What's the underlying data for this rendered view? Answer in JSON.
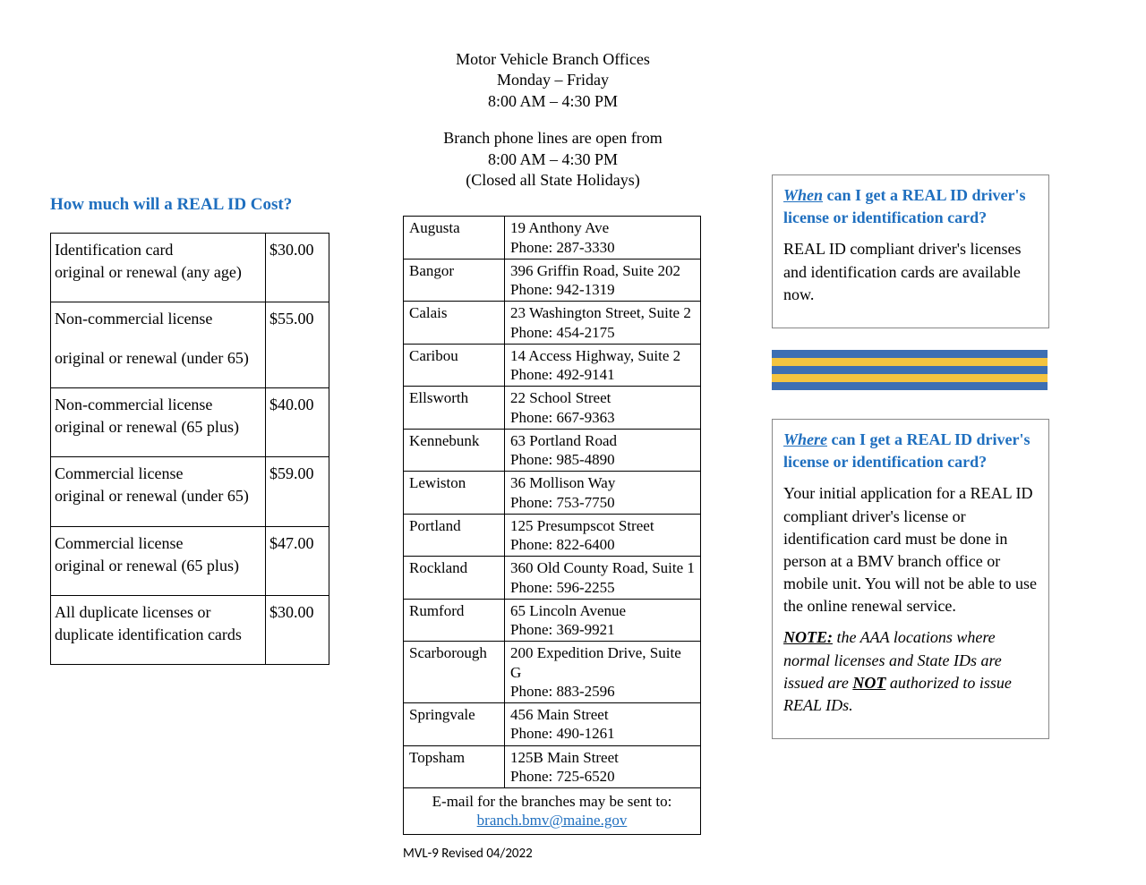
{
  "left": {
    "title": "How much will a REAL ID Cost?",
    "rows": [
      {
        "desc1": "Identification card",
        "desc2": "original or renewal  (any age)",
        "price": "$30.00"
      },
      {
        "desc1": "Non-commercial license",
        "desc2": "original or renewal (under 65)",
        "price": "$55.00",
        "spaced": true
      },
      {
        "desc1": "Non-commercial license",
        "desc2": "original or renewal (65 plus)",
        "price": "$40.00"
      },
      {
        "desc1": "Commercial license",
        "desc2": "original or renewal (under 65)",
        "price": "$59.00"
      },
      {
        "desc1": "Commercial license",
        "desc2": "original or renewal (65 plus)",
        "price": "$47.00"
      },
      {
        "desc1": "All duplicate licenses or",
        "desc2": "duplicate identification cards",
        "price": "$30.00"
      }
    ]
  },
  "mid": {
    "header1": "Motor Vehicle Branch Offices",
    "header2": "Monday – Friday",
    "header3": "8:00 AM – 4:30 PM",
    "header4": "Branch phone lines are open from",
    "header5": "8:00 AM – 4:30 PM",
    "header6": "(Closed all State Holidays)",
    "branches": [
      {
        "city": "Augusta",
        "addr": "19 Anthony Ave",
        "phone": "Phone: 287-3330"
      },
      {
        "city": "Bangor",
        "addr": "396 Griffin Road, Suite 202",
        "phone": "Phone: 942-1319"
      },
      {
        "city": "Calais",
        "addr": "23 Washington Street, Suite 2",
        "phone": "Phone:  454-2175"
      },
      {
        "city": "Caribou",
        "addr": "14 Access Highway, Suite 2",
        "phone": "Phone:  492-9141"
      },
      {
        "city": "Ellsworth",
        "addr": "22 School Street",
        "phone": "Phone:  667-9363"
      },
      {
        "city": "Kennebunk",
        "addr": "63 Portland Road",
        "phone": "Phone:  985-4890"
      },
      {
        "city": "Lewiston",
        "addr": "36 Mollison Way",
        "phone": "Phone:  753-7750"
      },
      {
        "city": "Portland",
        "addr": "125 Presumpscot Street",
        "phone": "Phone:  822-6400"
      },
      {
        "city": "Rockland",
        "addr": "360 Old County Road, Suite 1",
        "phone": "Phone:  596-2255"
      },
      {
        "city": "Rumford",
        "addr": "65 Lincoln Avenue",
        "phone": "Phone:  369-9921"
      },
      {
        "city": "Scarborough",
        "addr": "200 Expedition Drive, Suite G",
        "phone": "Phone:  883-2596"
      },
      {
        "city": "Springvale",
        "addr": "456 Main Street",
        "phone": "Phone:  490-1261"
      },
      {
        "city": "Topsham",
        "addr": "125B Main Street",
        "phone": "Phone:  725-6520"
      }
    ],
    "email_intro": "E-mail for the branches may be sent to:",
    "email": "branch.bmv@maine.gov",
    "doc_rev": "MVL-9  Revised 04/2022"
  },
  "right": {
    "when_key": "When",
    "when_rest": " can I get a REAL ID driver's license or identification card?",
    "when_body": "REAL ID compliant driver's licenses and identification cards are available now.",
    "stripes": [
      "#3d6fb3",
      "#f4c440",
      "#3d6fb3",
      "#f4c440",
      "#3d6fb3"
    ],
    "where_key": "Where",
    "where_rest": " can I get a REAL ID driver's license or identification card?",
    "where_body": "Your initial application for a REAL ID compliant driver's license or identification card must be done in person at a BMV branch office or mobile unit. You will not be able to use the online renewal service.",
    "note_label": "NOTE:",
    "note_1": " the AAA locations where normal licenses and State IDs are issued are ",
    "not_word": "NOT",
    "note_2": " authorized to issue REAL IDs."
  }
}
